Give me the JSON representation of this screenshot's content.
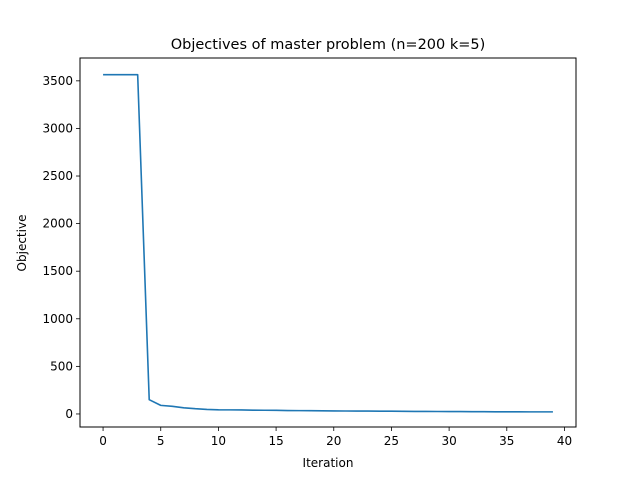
{
  "chart_data": {
    "type": "line",
    "title": "Objectives of master problem (n=200 k=5)",
    "xlabel": "Iteration",
    "ylabel": "Objective",
    "xlim": [
      -2,
      41
    ],
    "ylim": [
      -137,
      3740
    ],
    "xticks": [
      0,
      5,
      10,
      15,
      20,
      25,
      30,
      35,
      40
    ],
    "yticks": [
      0,
      500,
      1000,
      1500,
      2000,
      2500,
      3000,
      3500
    ],
    "grid": false,
    "line_color": "#1f77b4",
    "series": [
      {
        "x": [
          0,
          1,
          2,
          3,
          4,
          5,
          6,
          7,
          8,
          9,
          10,
          11,
          12,
          13,
          14,
          15,
          16,
          17,
          18,
          19,
          20,
          21,
          22,
          23,
          24,
          25,
          26,
          27,
          28,
          29,
          30,
          31,
          32,
          33,
          34,
          35,
          36,
          37,
          38,
          39
        ],
        "y": [
          3565,
          3565,
          3565,
          3565,
          150,
          90,
          80,
          65,
          55,
          48,
          44,
          43,
          42,
          40,
          39,
          38,
          36,
          35,
          34,
          33,
          32,
          31,
          30,
          30,
          29,
          29,
          28,
          27,
          27,
          26,
          25,
          25,
          24,
          24,
          23,
          23,
          23,
          22,
          22,
          22
        ]
      }
    ]
  }
}
